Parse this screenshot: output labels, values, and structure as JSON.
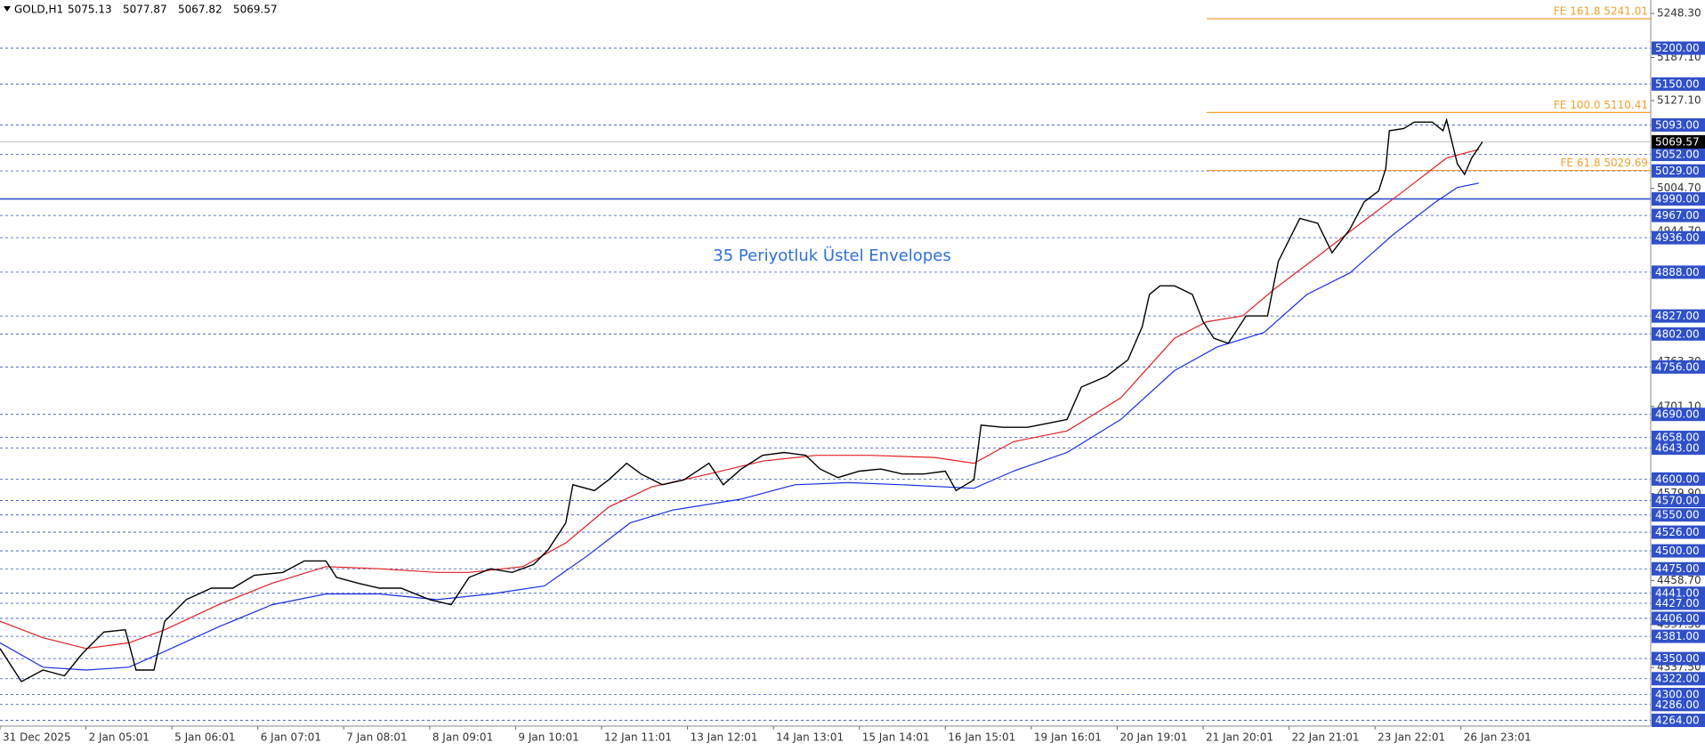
{
  "chart_data": {
    "type": "line",
    "title": "GOLD,H1",
    "ohlc": [
      5075.13,
      5077.87,
      5067.82,
      5069.57
    ],
    "annotation": "35 Periyotluk Üstel Envelopes",
    "xlim": [
      0,
      461
    ],
    "ylim": [
      4256,
      5267
    ],
    "xticks": [
      {
        "value": 0,
        "label": "31 Dec 2025"
      },
      {
        "value": 24,
        "label": "2 Jan 05:01"
      },
      {
        "value": 48,
        "label": "5 Jan 06:01"
      },
      {
        "value": 72,
        "label": "6 Jan 07:01"
      },
      {
        "value": 96,
        "label": "7 Jan 08:01"
      },
      {
        "value": 120,
        "label": "8 Jan 09:01"
      },
      {
        "value": 144,
        "label": "9 Jan 10:01"
      },
      {
        "value": 168,
        "label": "12 Jan 11:01"
      },
      {
        "value": 192,
        "label": "13 Jan 12:01"
      },
      {
        "value": 216,
        "label": "14 Jan 13:01"
      },
      {
        "value": 240,
        "label": "15 Jan 14:01"
      },
      {
        "value": 264,
        "label": "16 Jan 15:01"
      },
      {
        "value": 288,
        "label": "19 Jan 16:01"
      },
      {
        "value": 312,
        "label": "20 Jan 19:01"
      },
      {
        "value": 336,
        "label": "21 Jan 20:01"
      },
      {
        "value": 360,
        "label": "22 Jan 21:01"
      },
      {
        "value": 384,
        "label": "23 Jan 22:01"
      },
      {
        "value": 408,
        "label": "26 Jan 23:01"
      }
    ],
    "yticks": [
      {
        "value": 5248.3,
        "label": "5248.30"
      },
      {
        "value": 5187.1,
        "label": "5187.10"
      },
      {
        "value": 5127.1,
        "label": "5127.10"
      },
      {
        "value": 5004.7,
        "label": "5004.70"
      },
      {
        "value": 4944.7,
        "label": "4944.70"
      },
      {
        "value": 4763.3,
        "label": "4763.30"
      },
      {
        "value": 4701.1,
        "label": "4701.10"
      },
      {
        "value": 4579.9,
        "label": "4579.90"
      },
      {
        "value": 4458.7,
        "label": "4458.70"
      },
      {
        "value": 4397.5,
        "label": "4397.50"
      },
      {
        "value": 4337.5,
        "label": "4337.50"
      }
    ],
    "levels": [
      {
        "value": 5200,
        "label": "5200.00"
      },
      {
        "value": 5150,
        "label": "5150.00"
      },
      {
        "value": 5093,
        "label": "5093.00"
      },
      {
        "value": 5052,
        "label": "5052.00"
      },
      {
        "value": 5029,
        "label": "5029.00"
      },
      {
        "value": 4990,
        "label": "4990.00",
        "style": "solid"
      },
      {
        "value": 4967,
        "label": "4967.00"
      },
      {
        "value": 4936,
        "label": "4936.00"
      },
      {
        "value": 4888,
        "label": "4888.00"
      },
      {
        "value": 4827,
        "label": "4827.00"
      },
      {
        "value": 4802,
        "label": "4802.00"
      },
      {
        "value": 4756,
        "label": "4756.00"
      },
      {
        "value": 4690,
        "label": "4690.00"
      },
      {
        "value": 4658,
        "label": "4658.00"
      },
      {
        "value": 4643,
        "label": "4643.00"
      },
      {
        "value": 4600,
        "label": "4600.00"
      },
      {
        "value": 4570,
        "label": "4570.00"
      },
      {
        "value": 4550,
        "label": "4550.00"
      },
      {
        "value": 4526,
        "label": "4526.00"
      },
      {
        "value": 4500,
        "label": "4500.00"
      },
      {
        "value": 4475,
        "label": "4475.00"
      },
      {
        "value": 4441,
        "label": "4441.00"
      },
      {
        "value": 4427,
        "label": "4427.00"
      },
      {
        "value": 4406,
        "label": "4406.00"
      },
      {
        "value": 4381,
        "label": "4381.00"
      },
      {
        "value": 4350,
        "label": "4350.00"
      },
      {
        "value": 4322,
        "label": "4322.00"
      },
      {
        "value": 4300,
        "label": "4300.00"
      },
      {
        "value": 4286,
        "label": "4286.00"
      },
      {
        "value": 4264,
        "label": "4264.00"
      }
    ],
    "level_color": "#3050c8",
    "last": 5069.57,
    "fibo_start": 337,
    "fibo_color": "#f0a030",
    "fibo_levels": [
      {
        "value": 5241.01,
        "label": "FE 161.8 5241.01"
      },
      {
        "value": 5110.41,
        "label": "FE 100.0 5110.41"
      },
      {
        "value": 5029.69,
        "label": "FE 61.8 5029.69"
      }
    ],
    "series": [
      {
        "color": "#e02020",
        "x": [
          0,
          12,
          24,
          36,
          46,
          61,
          76,
          91,
          106,
          122,
          131,
          146,
          158,
          170,
          182,
          198,
          213,
          228,
          243,
          261,
          272,
          283,
          298,
          313,
          328,
          337,
          347,
          356,
          368,
          380,
          392,
          404,
          413
        ],
        "values": [
          4402,
          4379,
          4364,
          4372,
          4390,
          4425,
          4455,
          4478,
          4475,
          4470,
          4470,
          4478,
          4511,
          4561,
          4589,
          4607,
          4625,
          4633,
          4633,
          4630,
          4622,
          4652,
          4667,
          4713,
          4796,
          4819,
          4827,
          4865,
          4910,
          4956,
          5001,
          5047,
          5059
        ]
      },
      {
        "color": "#1830e0",
        "x": [
          0,
          12,
          24,
          36,
          46,
          61,
          76,
          91,
          106,
          122,
          137,
          152,
          164,
          176,
          188,
          207,
          222,
          237,
          252,
          272,
          283,
          298,
          313,
          328,
          340,
          353,
          365,
          377,
          389,
          401,
          407,
          413
        ],
        "values": [
          4372,
          4338,
          4334,
          4338,
          4360,
          4394,
          4425,
          4440,
          4440,
          4432,
          4440,
          4451,
          4493,
          4539,
          4557,
          4572,
          4592,
          4595,
          4592,
          4587,
          4611,
          4637,
          4683,
          4751,
          4784,
          4804,
          4857,
          4887,
          4940,
          4986,
          5006,
          5012
        ]
      },
      {
        "color": "#000000",
        "x": [
          0,
          6,
          12,
          18,
          23,
          29,
          35,
          38,
          43,
          46,
          52,
          59,
          65,
          71,
          79,
          85,
          91,
          94,
          100,
          106,
          112,
          120,
          126,
          131,
          137,
          143,
          149,
          153,
          158,
          160,
          166,
          170,
          175,
          179,
          185,
          191,
          198,
          202,
          207,
          213,
          219,
          225,
          229,
          234,
          240,
          246,
          252,
          258,
          264,
          267,
          272,
          274,
          280,
          287,
          293,
          298,
          302,
          309,
          315,
          319,
          321,
          324,
          328,
          333,
          336,
          339,
          343,
          348,
          354,
          357,
          363,
          368,
          372,
          377,
          381,
          385,
          387,
          388,
          392,
          395,
          400,
          403,
          404,
          407,
          409,
          411,
          414
        ],
        "values": [
          4364,
          4318,
          4334,
          4326,
          4357,
          4387,
          4390,
          4334,
          4334,
          4402,
          4432,
          4448,
          4448,
          4466,
          4470,
          4486,
          4486,
          4463,
          4455,
          4448,
          4448,
          4432,
          4425,
          4463,
          4475,
          4470,
          4481,
          4501,
          4539,
          4592,
          4584,
          4599,
          4622,
          4607,
          4592,
          4599,
          4622,
          4592,
          4614,
          4633,
          4637,
          4633,
          4614,
          4602,
          4611,
          4614,
          4607,
          4607,
          4611,
          4584,
          4599,
          4675,
          4672,
          4672,
          4678,
          4683,
          4728,
          4743,
          4766,
          4812,
          4857,
          4869,
          4869,
          4857,
          4819,
          4796,
          4789,
          4827,
          4827,
          4903,
          4963,
          4956,
          4915,
          4948,
          4986,
          5001,
          5032,
          5085,
          5088,
          5097,
          5097,
          5085,
          5100,
          5039,
          5024,
          5047,
          5069.57
        ]
      }
    ]
  }
}
